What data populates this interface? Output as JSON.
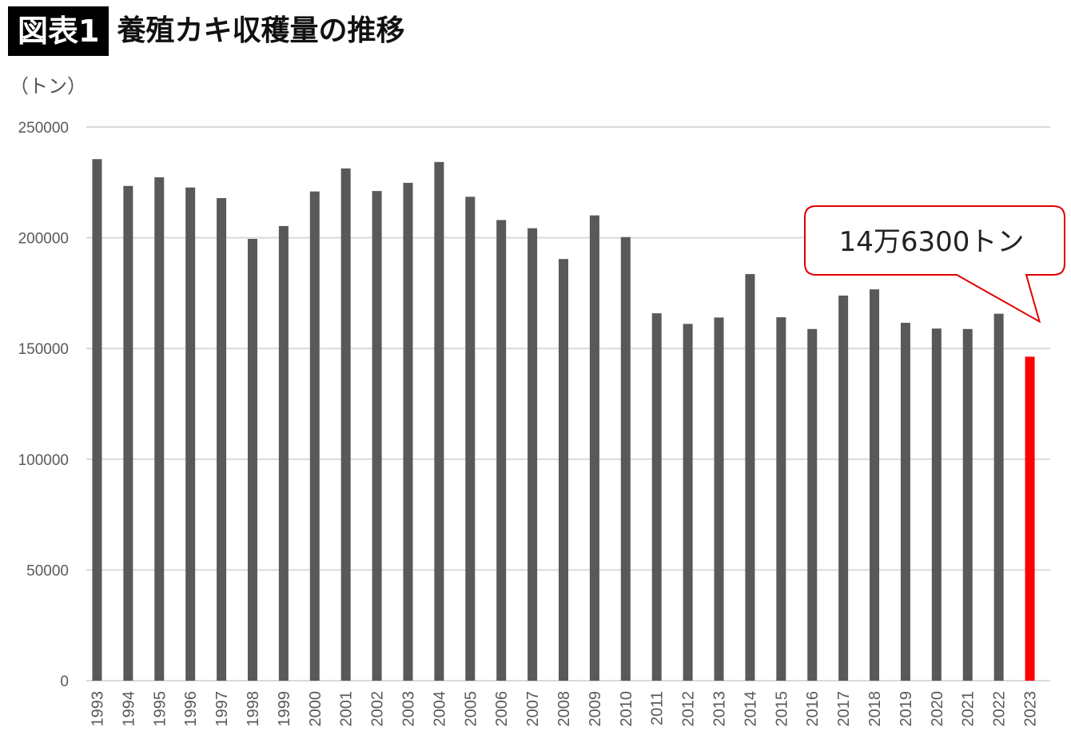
{
  "header": {
    "badge": "図表1",
    "title": "養殖カキ収穫量の推移"
  },
  "unit_label": "（トン）",
  "callout": {
    "text": "14万6300トン"
  },
  "colors": {
    "bar": "#595959",
    "highlight": "#ff0000",
    "grid": "#d9d9d9",
    "axis_text": "#595959"
  },
  "chart_data": {
    "type": "bar",
    "title": "養殖カキ収穫量の推移",
    "ylabel": "（トン）",
    "xlabel": "",
    "ylim": [
      0,
      250000
    ],
    "yticks": [
      0,
      50000,
      100000,
      150000,
      200000,
      250000
    ],
    "grid": true,
    "categories": [
      "1993",
      "1994",
      "1995",
      "1996",
      "1997",
      "1998",
      "1999",
      "2000",
      "2001",
      "2002",
      "2003",
      "2004",
      "2005",
      "2006",
      "2007",
      "2008",
      "2009",
      "2010",
      "2011",
      "2012",
      "2013",
      "2014",
      "2015",
      "2016",
      "2017",
      "2018",
      "2019",
      "2020",
      "2021",
      "2022",
      "2023"
    ],
    "values": [
      235500,
      223400,
      227300,
      222700,
      217900,
      199500,
      205300,
      220900,
      231300,
      221100,
      224800,
      234200,
      218500,
      208000,
      204300,
      190400,
      210100,
      200300,
      165900,
      161100,
      164000,
      183600,
      164100,
      158800,
      173900,
      176700,
      161600,
      159000,
      158800,
      165700,
      146300
    ],
    "highlight_index": 30
  }
}
